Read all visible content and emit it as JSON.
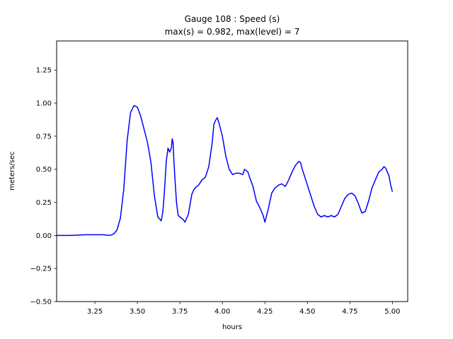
{
  "chart_data": {
    "type": "line",
    "title_line1": "Gauge 108 : Speed (s)",
    "title_line2": "max(s) =   0.982,    max(level) = 7",
    "xlabel": "hours",
    "ylabel": "meters/sec",
    "xlim": [
      3.025,
      5.09
    ],
    "ylim": [
      -0.5,
      1.47
    ],
    "xticks": [
      3.25,
      3.5,
      3.75,
      4.0,
      4.25,
      4.5,
      4.75,
      5.0
    ],
    "xtick_labels": [
      "3.25",
      "3.50",
      "3.75",
      "4.00",
      "4.25",
      "4.50",
      "4.75",
      "5.00"
    ],
    "yticks": [
      -0.5,
      -0.25,
      0.0,
      0.25,
      0.5,
      0.75,
      1.0,
      1.25
    ],
    "ytick_labels": [
      "−0.50",
      "−0.25",
      "0.00",
      "0.25",
      "0.50",
      "0.75",
      "1.00",
      "1.25"
    ],
    "grid": false,
    "series": [
      {
        "color": "#0000ff",
        "x": [
          3.025,
          3.1,
          3.2,
          3.3,
          3.34,
          3.36,
          3.38,
          3.4,
          3.42,
          3.44,
          3.46,
          3.48,
          3.5,
          3.52,
          3.54,
          3.56,
          3.58,
          3.6,
          3.62,
          3.64,
          3.65,
          3.66,
          3.67,
          3.68,
          3.69,
          3.7,
          3.705,
          3.71,
          3.715,
          3.72,
          3.73,
          3.74,
          3.75,
          3.77,
          3.78,
          3.8,
          3.82,
          3.83,
          3.84,
          3.86,
          3.88,
          3.9,
          3.92,
          3.94,
          3.95,
          3.96,
          3.97,
          3.98,
          3.99,
          4.0,
          4.02,
          4.04,
          4.06,
          4.08,
          4.1,
          4.12,
          4.13,
          4.14,
          4.15,
          4.16,
          4.18,
          4.2,
          4.22,
          4.24,
          4.25,
          4.27,
          4.29,
          4.31,
          4.33,
          4.35,
          4.37,
          4.39,
          4.41,
          4.43,
          4.45,
          4.46,
          4.47,
          4.48,
          4.5,
          4.52,
          4.54,
          4.56,
          4.58,
          4.6,
          4.62,
          4.64,
          4.66,
          4.68,
          4.7,
          4.72,
          4.74,
          4.76,
          4.78,
          4.8,
          4.82,
          4.84,
          4.86,
          4.88,
          4.9,
          4.92,
          4.94,
          4.95,
          4.96,
          4.97,
          4.98,
          4.99,
          5.0
        ],
        "y": [
          0.0,
          0.0,
          0.005,
          0.005,
          0.0,
          0.01,
          0.04,
          0.13,
          0.35,
          0.72,
          0.93,
          0.982,
          0.97,
          0.9,
          0.8,
          0.7,
          0.55,
          0.3,
          0.14,
          0.11,
          0.18,
          0.35,
          0.56,
          0.66,
          0.63,
          0.66,
          0.73,
          0.7,
          0.56,
          0.45,
          0.25,
          0.15,
          0.14,
          0.12,
          0.1,
          0.16,
          0.31,
          0.34,
          0.36,
          0.38,
          0.42,
          0.44,
          0.52,
          0.7,
          0.84,
          0.87,
          0.89,
          0.85,
          0.8,
          0.75,
          0.6,
          0.5,
          0.46,
          0.47,
          0.47,
          0.46,
          0.5,
          0.49,
          0.48,
          0.44,
          0.37,
          0.26,
          0.21,
          0.15,
          0.1,
          0.2,
          0.32,
          0.36,
          0.38,
          0.39,
          0.37,
          0.42,
          0.48,
          0.53,
          0.56,
          0.55,
          0.5,
          0.46,
          0.38,
          0.3,
          0.22,
          0.16,
          0.14,
          0.15,
          0.14,
          0.15,
          0.14,
          0.16,
          0.22,
          0.28,
          0.31,
          0.32,
          0.3,
          0.24,
          0.17,
          0.18,
          0.26,
          0.36,
          0.42,
          0.48,
          0.5,
          0.52,
          0.51,
          0.48,
          0.45,
          0.38,
          0.33
        ]
      }
    ]
  }
}
